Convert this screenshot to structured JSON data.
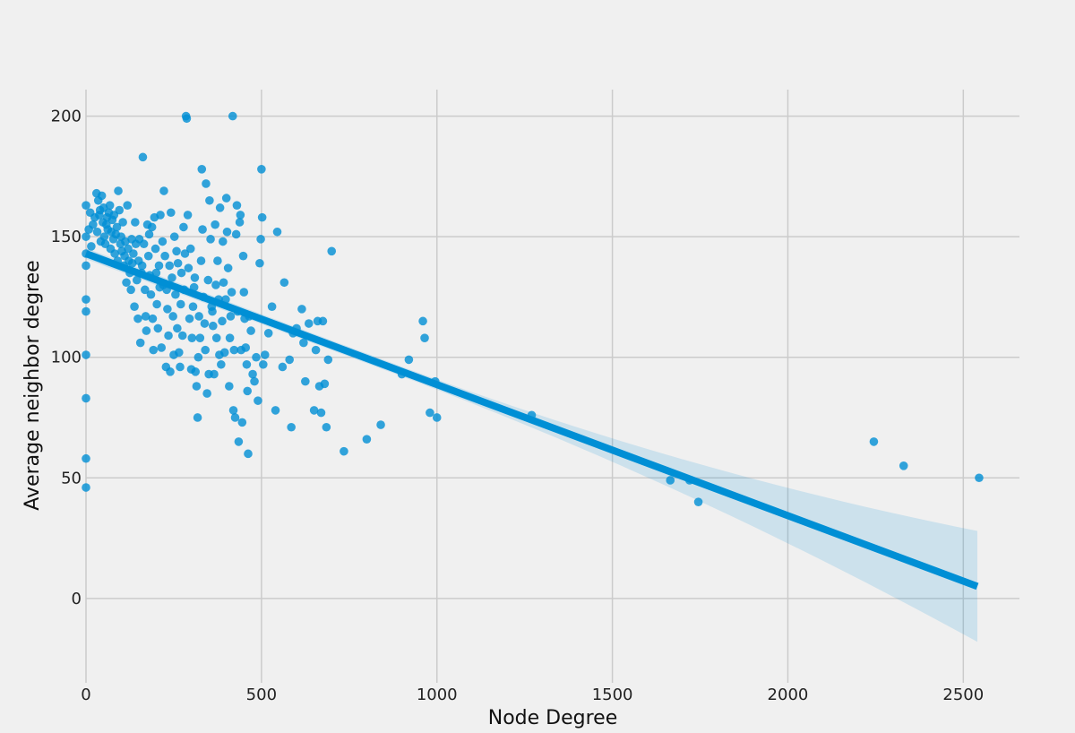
{
  "chart_data": {
    "type": "scatter",
    "title": "",
    "xlabel": "Node Degree",
    "ylabel": "Average neighbor degree",
    "xlim": [
      0,
      2660
    ],
    "ylim": [
      -35,
      211
    ],
    "x_ticks": [
      0,
      500,
      1000,
      1500,
      2000,
      2500
    ],
    "y_ticks": [
      0,
      50,
      100,
      150,
      200
    ],
    "grid": true,
    "legend": "none",
    "colors": {
      "point": "#008fd5",
      "regression_line": "#008fd5",
      "confidence_band": "#008fd5",
      "grid": "#cbcbcb",
      "background": "#f0f0f0"
    },
    "regression": {
      "x_range": [
        0,
        2540
      ],
      "y_start": 143,
      "y_end": 5,
      "ci_low_at_x0": 140,
      "ci_high_at_x0": 146,
      "ci_low_at_xmax": -23,
      "ci_high_at_xmax": 23
    },
    "series": [
      {
        "points": [
          [
            0,
            163
          ],
          [
            0,
            150
          ],
          [
            0,
            143
          ],
          [
            0,
            138
          ],
          [
            0,
            124
          ],
          [
            0,
            119
          ],
          [
            0,
            101
          ],
          [
            0,
            83
          ],
          [
            0,
            58
          ],
          [
            0,
            46
          ],
          [
            8,
            153
          ],
          [
            12,
            160
          ],
          [
            15,
            146
          ],
          [
            20,
            155
          ],
          [
            25,
            158
          ],
          [
            30,
            168
          ],
          [
            32,
            152
          ],
          [
            35,
            165
          ],
          [
            38,
            159
          ],
          [
            40,
            161
          ],
          [
            42,
            148
          ],
          [
            45,
            167
          ],
          [
            48,
            156
          ],
          [
            50,
            162
          ],
          [
            52,
            150
          ],
          [
            55,
            147
          ],
          [
            58,
            155
          ],
          [
            60,
            158
          ],
          [
            62,
            153
          ],
          [
            65,
            160
          ],
          [
            68,
            163
          ],
          [
            70,
            145
          ],
          [
            72,
            152
          ],
          [
            75,
            157
          ],
          [
            78,
            149
          ],
          [
            80,
            159
          ],
          [
            82,
            143
          ],
          [
            85,
            151
          ],
          [
            88,
            154
          ],
          [
            90,
            140
          ],
          [
            92,
            169
          ],
          [
            95,
            161
          ],
          [
            98,
            147
          ],
          [
            100,
            150
          ],
          [
            102,
            144
          ],
          [
            105,
            156
          ],
          [
            108,
            138
          ],
          [
            110,
            142
          ],
          [
            112,
            148
          ],
          [
            115,
            131
          ],
          [
            118,
            163
          ],
          [
            120,
            145
          ],
          [
            122,
            140
          ],
          [
            125,
            135
          ],
          [
            128,
            128
          ],
          [
            130,
            149
          ],
          [
            132,
            139
          ],
          [
            135,
            143
          ],
          [
            138,
            121
          ],
          [
            140,
            156
          ],
          [
            142,
            147
          ],
          [
            145,
            132
          ],
          [
            148,
            116
          ],
          [
            150,
            140
          ],
          [
            152,
            149
          ],
          [
            155,
            106
          ],
          [
            158,
            135
          ],
          [
            160,
            138
          ],
          [
            162,
            183
          ],
          [
            165,
            147
          ],
          [
            168,
            128
          ],
          [
            170,
            117
          ],
          [
            172,
            111
          ],
          [
            175,
            155
          ],
          [
            178,
            142
          ],
          [
            180,
            151
          ],
          [
            182,
            134
          ],
          [
            185,
            126
          ],
          [
            188,
            154
          ],
          [
            190,
            116
          ],
          [
            192,
            103
          ],
          [
            195,
            158
          ],
          [
            198,
            145
          ],
          [
            200,
            135
          ],
          [
            202,
            122
          ],
          [
            205,
            112
          ],
          [
            208,
            138
          ],
          [
            210,
            129
          ],
          [
            212,
            159
          ],
          [
            215,
            104
          ],
          [
            218,
            148
          ],
          [
            220,
            130
          ],
          [
            222,
            169
          ],
          [
            225,
            142
          ],
          [
            228,
            96
          ],
          [
            230,
            128
          ],
          [
            232,
            120
          ],
          [
            235,
            109
          ],
          [
            238,
            138
          ],
          [
            240,
            94
          ],
          [
            242,
            160
          ],
          [
            245,
            133
          ],
          [
            248,
            117
          ],
          [
            250,
            101
          ],
          [
            252,
            150
          ],
          [
            255,
            126
          ],
          [
            258,
            144
          ],
          [
            260,
            112
          ],
          [
            262,
            139
          ],
          [
            265,
            102
          ],
          [
            268,
            96
          ],
          [
            270,
            122
          ],
          [
            272,
            135
          ],
          [
            275,
            109
          ],
          [
            278,
            154
          ],
          [
            280,
            128
          ],
          [
            282,
            143
          ],
          [
            285,
            200
          ],
          [
            287,
            199
          ],
          [
            290,
            159
          ],
          [
            292,
            137
          ],
          [
            295,
            116
          ],
          [
            298,
            145
          ],
          [
            300,
            95
          ],
          [
            302,
            108
          ],
          [
            305,
            121
          ],
          [
            308,
            129
          ],
          [
            310,
            133
          ],
          [
            312,
            94
          ],
          [
            315,
            88
          ],
          [
            318,
            75
          ],
          [
            320,
            100
          ],
          [
            322,
            117
          ],
          [
            325,
            108
          ],
          [
            328,
            140
          ],
          [
            330,
            178
          ],
          [
            332,
            153
          ],
          [
            335,
            125
          ],
          [
            338,
            114
          ],
          [
            340,
            103
          ],
          [
            342,
            172
          ],
          [
            345,
            85
          ],
          [
            348,
            132
          ],
          [
            350,
            93
          ],
          [
            352,
            165
          ],
          [
            355,
            149
          ],
          [
            358,
            121
          ],
          [
            360,
            119
          ],
          [
            362,
            113
          ],
          [
            365,
            93
          ],
          [
            368,
            155
          ],
          [
            370,
            130
          ],
          [
            372,
            108
          ],
          [
            375,
            140
          ],
          [
            378,
            124
          ],
          [
            380,
            101
          ],
          [
            382,
            162
          ],
          [
            385,
            97
          ],
          [
            388,
            115
          ],
          [
            390,
            148
          ],
          [
            392,
            131
          ],
          [
            395,
            102
          ],
          [
            398,
            124
          ],
          [
            400,
            166
          ],
          [
            402,
            152
          ],
          [
            405,
            137
          ],
          [
            408,
            88
          ],
          [
            410,
            108
          ],
          [
            412,
            117
          ],
          [
            415,
            127
          ],
          [
            418,
            200
          ],
          [
            420,
            78
          ],
          [
            422,
            103
          ],
          [
            425,
            75
          ],
          [
            428,
            151
          ],
          [
            430,
            163
          ],
          [
            432,
            119
          ],
          [
            435,
            65
          ],
          [
            438,
            156
          ],
          [
            440,
            159
          ],
          [
            442,
            103
          ],
          [
            445,
            73
          ],
          [
            448,
            142
          ],
          [
            450,
            127
          ],
          [
            452,
            116
          ],
          [
            455,
            104
          ],
          [
            458,
            97
          ],
          [
            460,
            86
          ],
          [
            462,
            60
          ],
          [
            465,
            117
          ],
          [
            470,
            111
          ],
          [
            475,
            93
          ],
          [
            480,
            90
          ],
          [
            485,
            100
          ],
          [
            490,
            82
          ],
          [
            495,
            139
          ],
          [
            498,
            149
          ],
          [
            500,
            178
          ],
          [
            502,
            158
          ],
          [
            505,
            97
          ],
          [
            510,
            101
          ],
          [
            520,
            110
          ],
          [
            530,
            121
          ],
          [
            540,
            78
          ],
          [
            545,
            152
          ],
          [
            560,
            96
          ],
          [
            565,
            131
          ],
          [
            580,
            99
          ],
          [
            585,
            71
          ],
          [
            590,
            110
          ],
          [
            600,
            112
          ],
          [
            615,
            120
          ],
          [
            620,
            106
          ],
          [
            625,
            90
          ],
          [
            635,
            114
          ],
          [
            650,
            78
          ],
          [
            655,
            103
          ],
          [
            660,
            115
          ],
          [
            665,
            88
          ],
          [
            670,
            77
          ],
          [
            675,
            115
          ],
          [
            680,
            89
          ],
          [
            685,
            71
          ],
          [
            690,
            99
          ],
          [
            700,
            144
          ],
          [
            735,
            61
          ],
          [
            800,
            66
          ],
          [
            840,
            72
          ],
          [
            900,
            93
          ],
          [
            920,
            99
          ],
          [
            960,
            115
          ],
          [
            965,
            108
          ],
          [
            980,
            77
          ],
          [
            995,
            90
          ],
          [
            1000,
            75
          ],
          [
            1270,
            76
          ],
          [
            1665,
            49
          ],
          [
            1720,
            49
          ],
          [
            1745,
            40
          ],
          [
            2245,
            65
          ],
          [
            2330,
            55
          ],
          [
            2545,
            50
          ]
        ]
      }
    ]
  }
}
